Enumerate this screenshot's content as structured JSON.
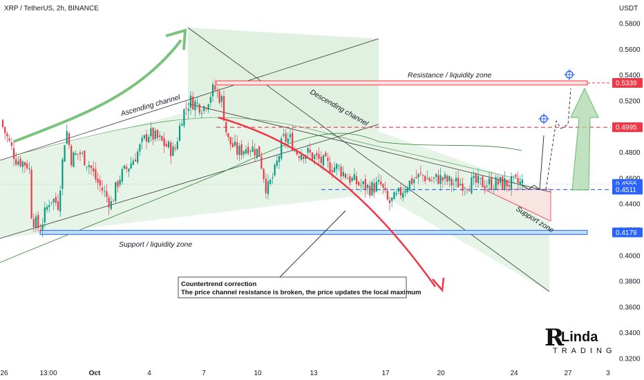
{
  "header": {
    "symbol": "XRP / TetherUS, 2h, BINANCE",
    "currency": "USDT"
  },
  "colors": {
    "up": "#089981",
    "down": "#f23645",
    "bull": "#26a69a",
    "resistance": "#f23645",
    "support": "#2962ff",
    "current": "#2962ff",
    "zone": "#c8e6c9"
  },
  "chart_data": {
    "type": "candlestick",
    "y_axis": {
      "unit": "USDT",
      "min": 0.31,
      "max": 0.59,
      "ticks": [
        "0.5800",
        "0.5600",
        "0.5400",
        "0.5200",
        "0.5000",
        "0.4800",
        "0.4600",
        "0.4400",
        "0.4200",
        "0.4000",
        "0.3800",
        "0.3600",
        "0.3400",
        "0.3200"
      ],
      "tick_values": [
        0.58,
        0.56,
        0.54,
        0.52,
        0.5,
        0.48,
        0.46,
        0.44,
        0.42,
        0.4,
        0.38,
        0.36,
        0.34,
        0.32
      ]
    },
    "x_axis": {
      "labels": [
        "26",
        "13:00",
        "Oct",
        "4",
        "7",
        "10",
        "13",
        "17",
        "20",
        "24",
        "27",
        "3"
      ],
      "bold": [
        "Oct"
      ]
    },
    "price_tags": [
      {
        "value": "0.5339",
        "level": 0.5339,
        "kind": "resistance"
      },
      {
        "value": "0.4995",
        "level": 0.4995,
        "kind": "resistance"
      },
      {
        "value": "0.4555",
        "level": 0.4555,
        "kind": "current"
      },
      {
        "value": "0.4511",
        "level": 0.4511,
        "kind": "support"
      },
      {
        "value": "0.4179",
        "level": 0.4179,
        "kind": "support"
      }
    ],
    "annotations": {
      "resistance_zone": "Resistance / liquidity zone",
      "support_zone": "Support / liquidity zone",
      "ascending_channel": "Ascending channel",
      "descending_channel": "Descending channel",
      "support_zone_small": "Support zone",
      "callout_title": "Countertrend correction",
      "callout_text": "The price channel resistance is broken, the price updates the local maximum"
    },
    "candle_path": [
      [
        0.0,
        0.505
      ],
      [
        0.03,
        0.475
      ],
      [
        0.055,
        0.47
      ],
      [
        0.06,
        0.43
      ],
      [
        0.075,
        0.42
      ],
      [
        0.095,
        0.445
      ],
      [
        0.11,
        0.44
      ],
      [
        0.125,
        0.5
      ],
      [
        0.135,
        0.475
      ],
      [
        0.15,
        0.48
      ],
      [
        0.17,
        0.47
      ],
      [
        0.18,
        0.46
      ],
      [
        0.195,
        0.45
      ],
      [
        0.21,
        0.44
      ],
      [
        0.225,
        0.46
      ],
      [
        0.245,
        0.47
      ],
      [
        0.26,
        0.48
      ],
      [
        0.28,
        0.495
      ],
      [
        0.3,
        0.49
      ],
      [
        0.315,
        0.485
      ],
      [
        0.33,
        0.48
      ],
      [
        0.345,
        0.51
      ],
      [
        0.36,
        0.52
      ],
      [
        0.385,
        0.515
      ],
      [
        0.405,
        0.53
      ],
      [
        0.42,
        0.52
      ],
      [
        0.43,
        0.49
      ],
      [
        0.45,
        0.48
      ],
      [
        0.47,
        0.485
      ],
      [
        0.49,
        0.48
      ],
      [
        0.505,
        0.45
      ],
      [
        0.52,
        0.465
      ],
      [
        0.535,
        0.49
      ],
      [
        0.55,
        0.49
      ],
      [
        0.56,
        0.48
      ],
      [
        0.58,
        0.48
      ],
      [
        0.6,
        0.475
      ],
      [
        0.62,
        0.47
      ],
      [
        0.64,
        0.468
      ],
      [
        0.66,
        0.46
      ],
      [
        0.68,
        0.455
      ],
      [
        0.7,
        0.452
      ],
      [
        0.72,
        0.455
      ],
      [
        0.735,
        0.44
      ],
      [
        0.75,
        0.445
      ],
      [
        0.77,
        0.455
      ],
      [
        0.785,
        0.46
      ],
      [
        0.8,
        0.462
      ],
      [
        0.815,
        0.458
      ],
      [
        0.83,
        0.46
      ],
      [
        0.845,
        0.458
      ],
      [
        0.855,
        0.456
      ]
    ]
  },
  "branding": {
    "logo_letter": "R",
    "logo_word": "Linda",
    "logo_sub": "TRADING"
  }
}
